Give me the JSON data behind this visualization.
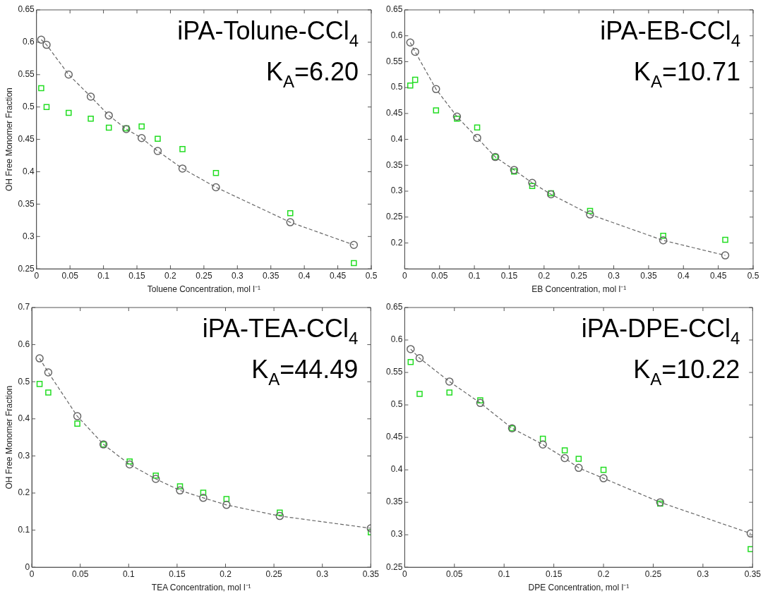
{
  "chart_data": [
    {
      "type": "line",
      "annotations": [
        "iPA-Tolune-CCl$_{4}$",
        "K$_{A}$=6.20"
      ],
      "xlabel": "Toluene Concentration, mol l⁻¹",
      "ylabel": "OH Free Monomer Fraction",
      "xlim": [
        0,
        0.5
      ],
      "ylim": [
        0.25,
        0.65
      ],
      "xticks": [
        0,
        0.05,
        0.1,
        0.15,
        0.2,
        0.25,
        0.3,
        0.35,
        0.4,
        0.45,
        0.5
      ],
      "yticks": [
        0.25,
        0.3,
        0.35,
        0.4,
        0.45,
        0.5,
        0.55,
        0.6,
        0.65
      ],
      "x": [
        0.007,
        0.015,
        0.048,
        0.081,
        0.108,
        0.134,
        0.157,
        0.181,
        0.218,
        0.268,
        0.379,
        0.474
      ],
      "series": [
        {
          "color": "#666666",
          "marker": "circle",
          "line_style": "dashed",
          "values": [
            0.604,
            0.596,
            0.55,
            0.516,
            0.487,
            0.466,
            0.452,
            0.432,
            0.405,
            0.376,
            0.322,
            0.287
          ]
        },
        {
          "type": "scatter",
          "color": "#22dd22",
          "marker": "square",
          "values": [
            0.529,
            0.5,
            0.491,
            0.482,
            0.468,
            0.467,
            0.47,
            0.451,
            0.435,
            0.398,
            0.336,
            0.259
          ]
        }
      ]
    },
    {
      "type": "line",
      "annotations": [
        "iPA-EB-CCl$_{4}$",
        "K$_{A}$=10.71"
      ],
      "xlabel": "EB Concentration, mol l⁻¹",
      "xlim": [
        0,
        0.5
      ],
      "ylim": [
        0.15,
        0.65
      ],
      "xticks": [
        0,
        0.05,
        0.1,
        0.15,
        0.2,
        0.25,
        0.3,
        0.35,
        0.4,
        0.45,
        0.5
      ],
      "yticks": [
        {
          "value": 0.15,
          "label": null
        },
        0.2,
        0.25,
        0.3,
        0.35,
        0.4,
        0.45,
        0.5,
        0.55,
        0.6,
        0.65
      ],
      "x": [
        0.008,
        0.015,
        0.045,
        0.075,
        0.104,
        0.13,
        0.157,
        0.183,
        0.21,
        0.266,
        0.371,
        0.46
      ],
      "series": [
        {
          "color": "#666666",
          "marker": "circle",
          "line_style": "dashed",
          "values": [
            0.587,
            0.569,
            0.497,
            0.444,
            0.403,
            0.366,
            0.341,
            0.316,
            0.294,
            0.255,
            0.205,
            0.176
          ]
        },
        {
          "type": "scatter",
          "color": "#22dd22",
          "marker": "square",
          "values": [
            0.504,
            0.515,
            0.456,
            0.44,
            0.423,
            0.366,
            0.338,
            0.31,
            0.296,
            0.262,
            0.214,
            0.206
          ]
        }
      ]
    },
    {
      "type": "line",
      "annotations": [
        "iPA-TEA-CCl$_{4}$",
        "K$_{A}$=44.49"
      ],
      "xlabel": "TEA Concentration, mol l⁻¹",
      "ylabel": "OH Free Monomer Fraction",
      "xlim": [
        0,
        0.35
      ],
      "ylim": [
        0,
        0.7
      ],
      "xticks": [
        0,
        0.05,
        0.1,
        0.15,
        0.2,
        0.25,
        0.3,
        0.35
      ],
      "yticks": [
        0,
        0.1,
        0.2,
        0.3,
        0.4,
        0.5,
        0.6,
        0.7
      ],
      "x": [
        0.008,
        0.017,
        0.047,
        0.074,
        0.101,
        0.128,
        0.153,
        0.177,
        0.201,
        0.256,
        0.35
      ],
      "series": [
        {
          "color": "#666666",
          "marker": "circle",
          "line_style": "dashed",
          "values": [
            0.563,
            0.525,
            0.407,
            0.331,
            0.277,
            0.238,
            0.207,
            0.187,
            0.168,
            0.138,
            0.105
          ]
        },
        {
          "type": "scatter",
          "color": "#22dd22",
          "marker": "square",
          "values": [
            0.494,
            0.471,
            0.387,
            0.331,
            0.285,
            0.247,
            0.218,
            0.201,
            0.184,
            0.147,
            0.094
          ]
        }
      ]
    },
    {
      "type": "line",
      "annotations": [
        "iPA-DPE-CCl$_{4}$",
        "K$_{A}$=10.22"
      ],
      "xlabel": "DPE Concentration, mol l⁻¹",
      "xlim": [
        0,
        0.35
      ],
      "ylim": [
        0.25,
        0.65
      ],
      "xticks": [
        0,
        0.05,
        0.1,
        0.15,
        0.2,
        0.25,
        0.3,
        0.35
      ],
      "yticks": [
        0.25,
        0.3,
        0.35,
        0.4,
        0.45,
        0.5,
        0.55,
        0.6,
        0.65
      ],
      "x": [
        0.006,
        0.015,
        0.045,
        0.076,
        0.108,
        0.139,
        0.161,
        0.175,
        0.2,
        0.257,
        0.348
      ],
      "series": [
        {
          "color": "#666666",
          "marker": "circle",
          "line_style": "dashed",
          "values": [
            0.586,
            0.572,
            0.536,
            0.503,
            0.464,
            0.439,
            0.418,
            0.403,
            0.387,
            0.35,
            0.302
          ]
        },
        {
          "type": "scatter",
          "color": "#22dd22",
          "marker": "square",
          "values": [
            0.566,
            0.517,
            0.519,
            0.507,
            0.464,
            0.448,
            0.43,
            0.417,
            0.4,
            0.348,
            0.278
          ]
        }
      ]
    }
  ]
}
